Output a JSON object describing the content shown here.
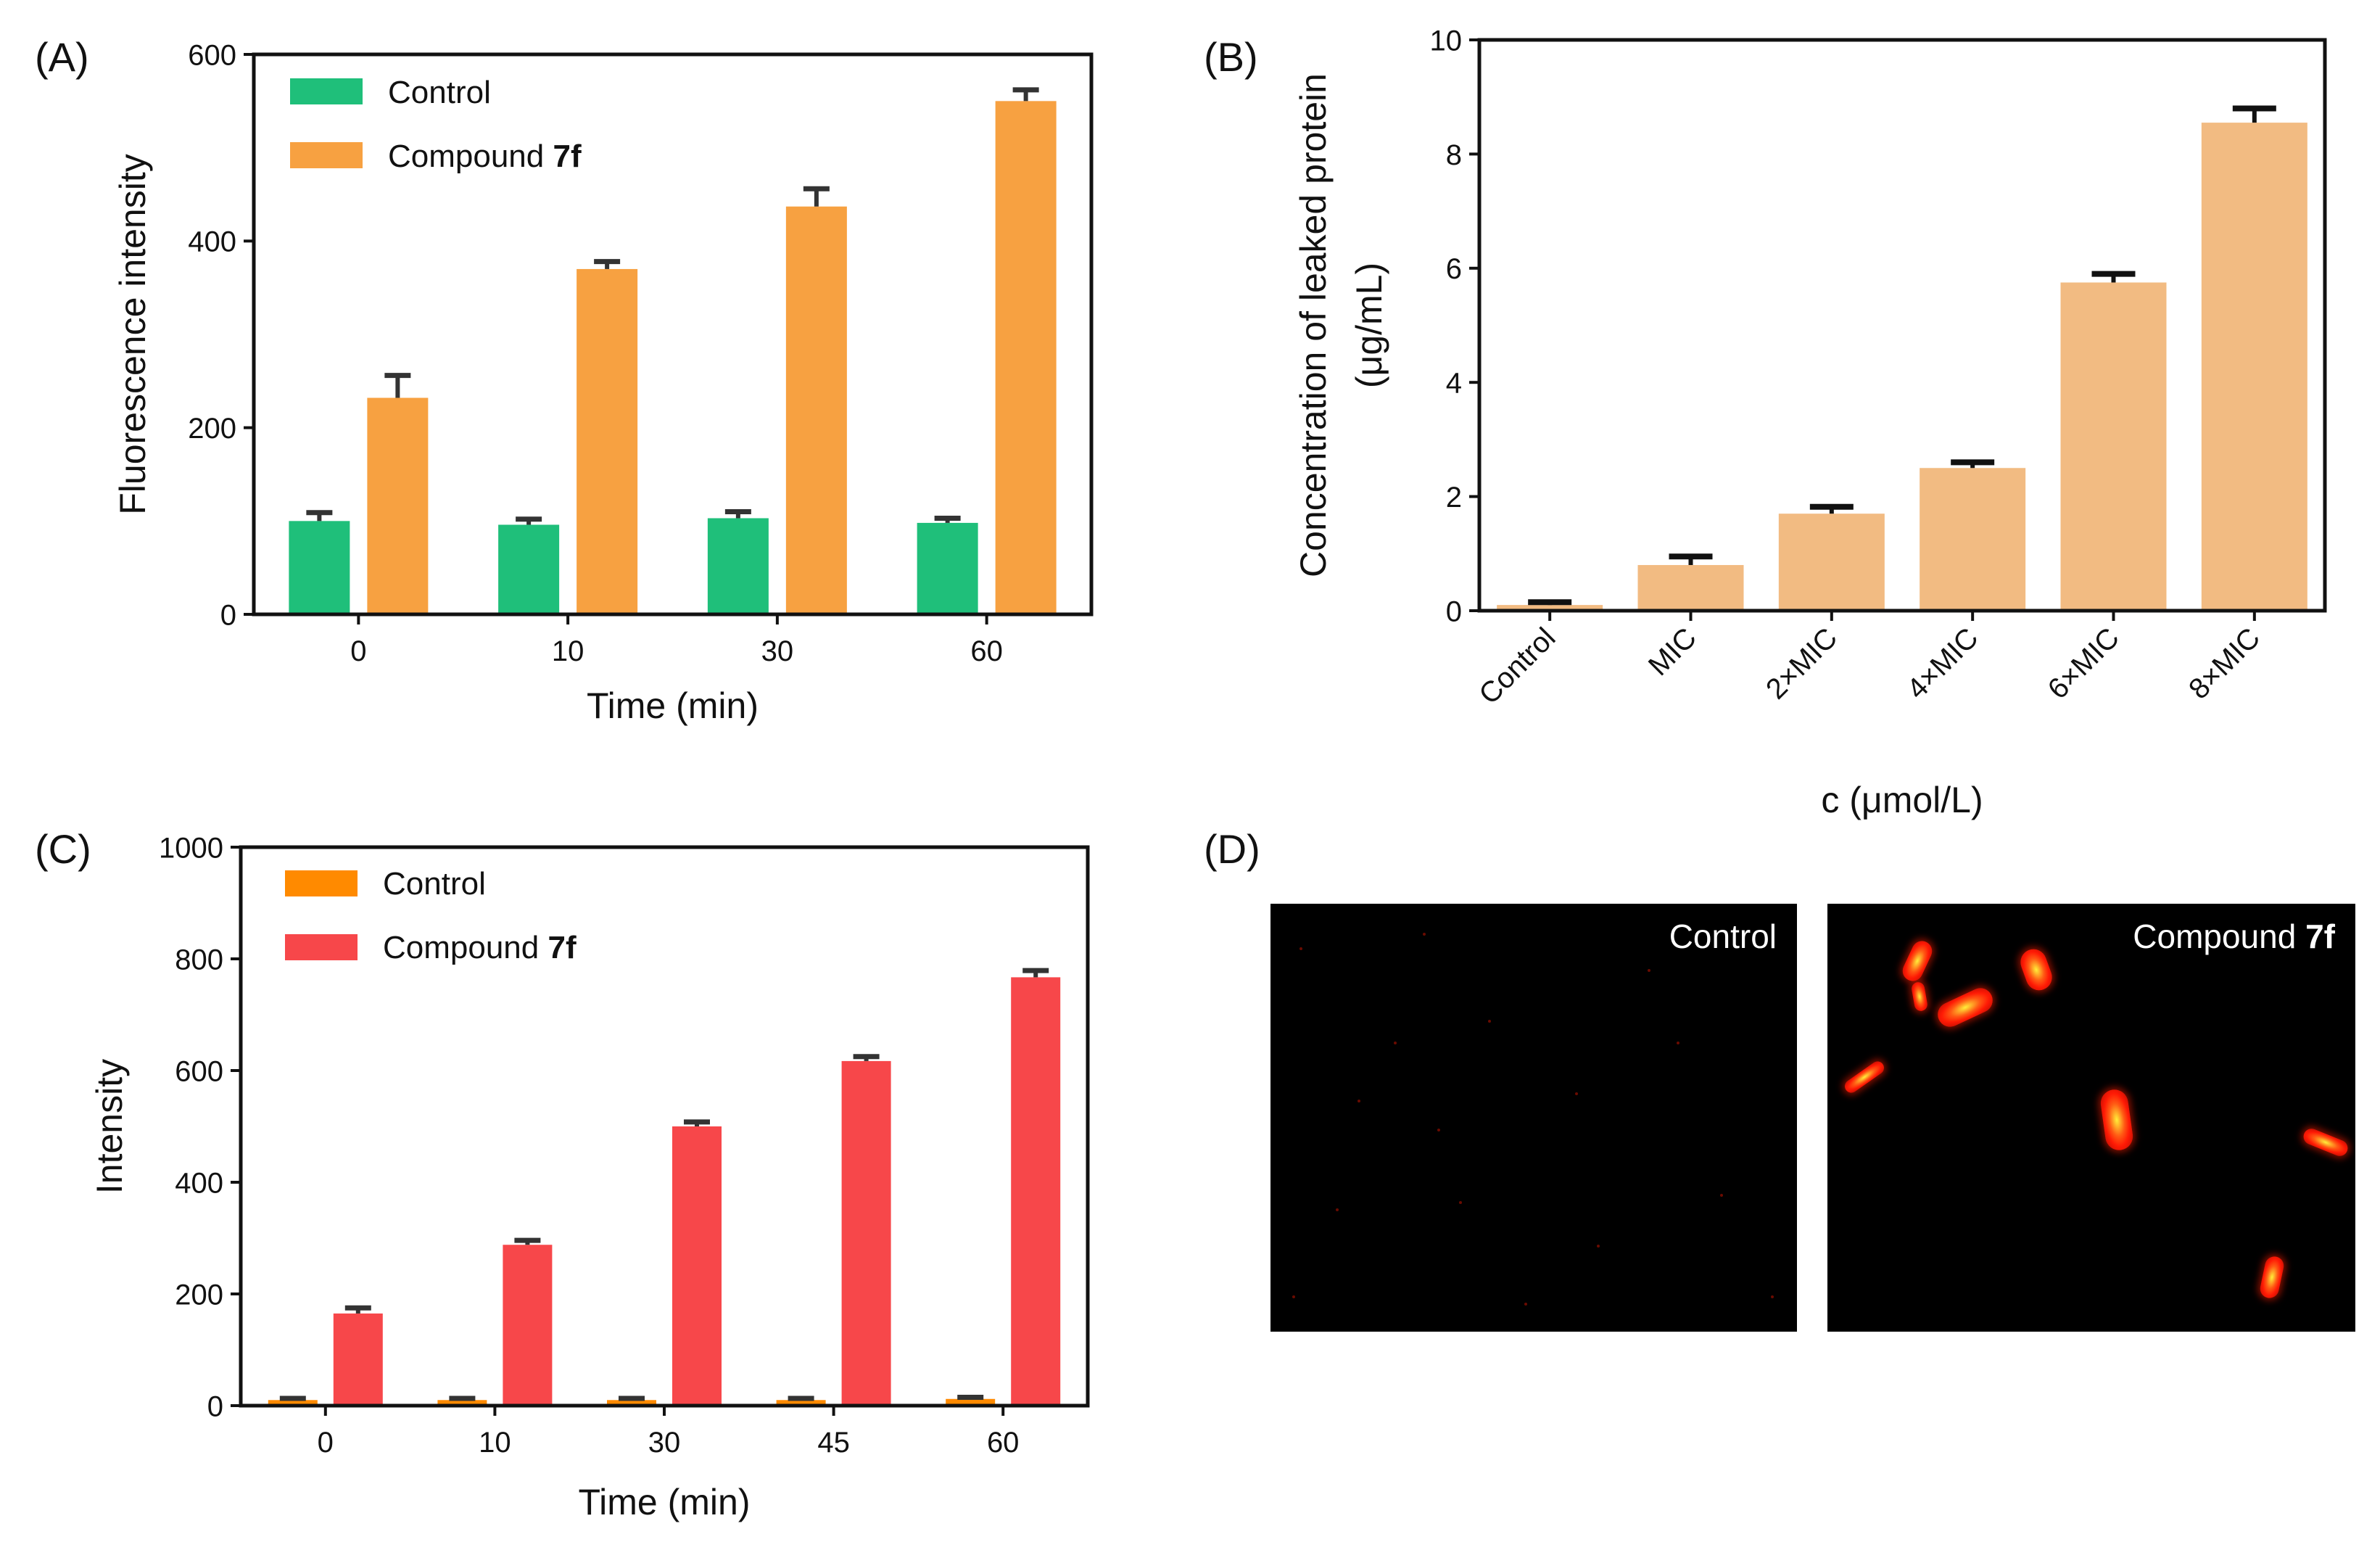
{
  "panels": {
    "A": {
      "label": "(A)",
      "legend_compound_prefix": "Compound ",
      "legend_compound_bold": "7f",
      "legend_control": "Control"
    },
    "B": {
      "label": "(B)"
    },
    "C": {
      "label": "(C)",
      "legend_compound_prefix": "Compound ",
      "legend_compound_bold": "7f",
      "legend_control": "Control"
    },
    "D": {
      "label": "(D)",
      "control_label": "Control",
      "compound_label_prefix": "Compound ",
      "compound_label_bold": "7f"
    }
  },
  "chart_data": [
    {
      "id": "A",
      "type": "bar",
      "categories": [
        "0",
        "10",
        "30",
        "60"
      ],
      "series": [
        {
          "name": "Control",
          "values": [
            100,
            96,
            103,
            98
          ],
          "errors": [
            9,
            6,
            7,
            5
          ],
          "color": "#1fbf7a"
        },
        {
          "name": "Compound 7f",
          "values": [
            232,
            370,
            437,
            550
          ],
          "errors": [
            24,
            8,
            19,
            12
          ],
          "color": "#f7a141"
        }
      ],
      "xlabel": "Time (min)",
      "ylabel": "Fluorescence intensity",
      "ylim": [
        0,
        600
      ],
      "yticks": [
        0,
        200,
        400,
        600
      ],
      "legend": "top-left"
    },
    {
      "id": "B",
      "type": "bar",
      "categories": [
        "Control",
        "MIC",
        "2×MIC",
        "4×MIC",
        "6×MIC",
        "8×MIC"
      ],
      "values": [
        0.1,
        0.8,
        1.7,
        2.5,
        5.75,
        8.55
      ],
      "errors": [
        0.05,
        0.15,
        0.12,
        0.1,
        0.15,
        0.25
      ],
      "color": "#f2bb82",
      "xlabel": "c (μmol/L)",
      "ylabel_line1": "Concentration of leaked protein",
      "ylabel_line2": "(μg/mL)",
      "ylim": [
        0,
        10
      ],
      "yticks": [
        0,
        2,
        4,
        6,
        8,
        10
      ]
    },
    {
      "id": "C",
      "type": "bar",
      "categories": [
        "0",
        "10",
        "30",
        "45",
        "60"
      ],
      "series": [
        {
          "name": "Control",
          "values": [
            10,
            10,
            10,
            10,
            12
          ],
          "errors": [
            3,
            3,
            3,
            3,
            3
          ],
          "color": "#ff8a00"
        },
        {
          "name": "Compound 7f",
          "values": [
            165,
            288,
            500,
            617,
            767
          ],
          "errors": [
            10,
            8,
            8,
            8,
            12
          ],
          "color": "#f7474a"
        }
      ],
      "xlabel": "Time (min)",
      "ylabel": "Intensity",
      "ylim": [
        0,
        1000
      ],
      "yticks": [
        0,
        200,
        400,
        600,
        800,
        1000
      ],
      "legend": "top-left"
    }
  ]
}
